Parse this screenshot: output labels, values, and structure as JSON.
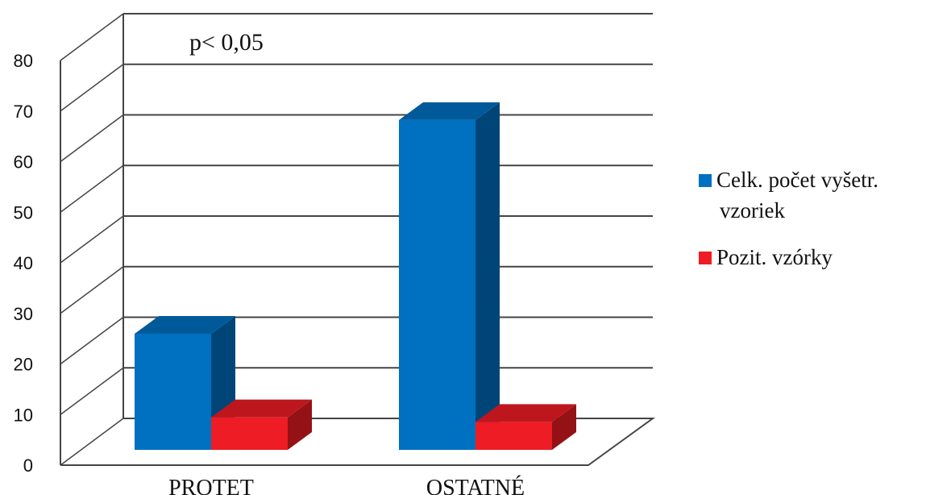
{
  "chart_data": {
    "type": "bar",
    "categories": [
      "PROTET",
      "OSTATNÉ"
    ],
    "series": [
      {
        "name": "Celk. počet vyšetr. vzoriek",
        "values": [
          25,
          71
        ],
        "color": "#0070c0"
      },
      {
        "name": "Pozit. vzórky",
        "values": [
          7,
          6
        ],
        "color": "#ee1c24"
      }
    ],
    "ylim": [
      0,
      80
    ],
    "yticks": [
      "0",
      "10",
      "20",
      "30",
      "40",
      "50",
      "60",
      "70",
      "80"
    ],
    "annotation": "p< 0,05",
    "legend_position": "right",
    "legend_labels": [
      [
        "Celk. počet vyšetr.",
        "vzoriek"
      ],
      [
        "Pozit. vzórky"
      ]
    ],
    "grid": true,
    "style": "3d"
  }
}
